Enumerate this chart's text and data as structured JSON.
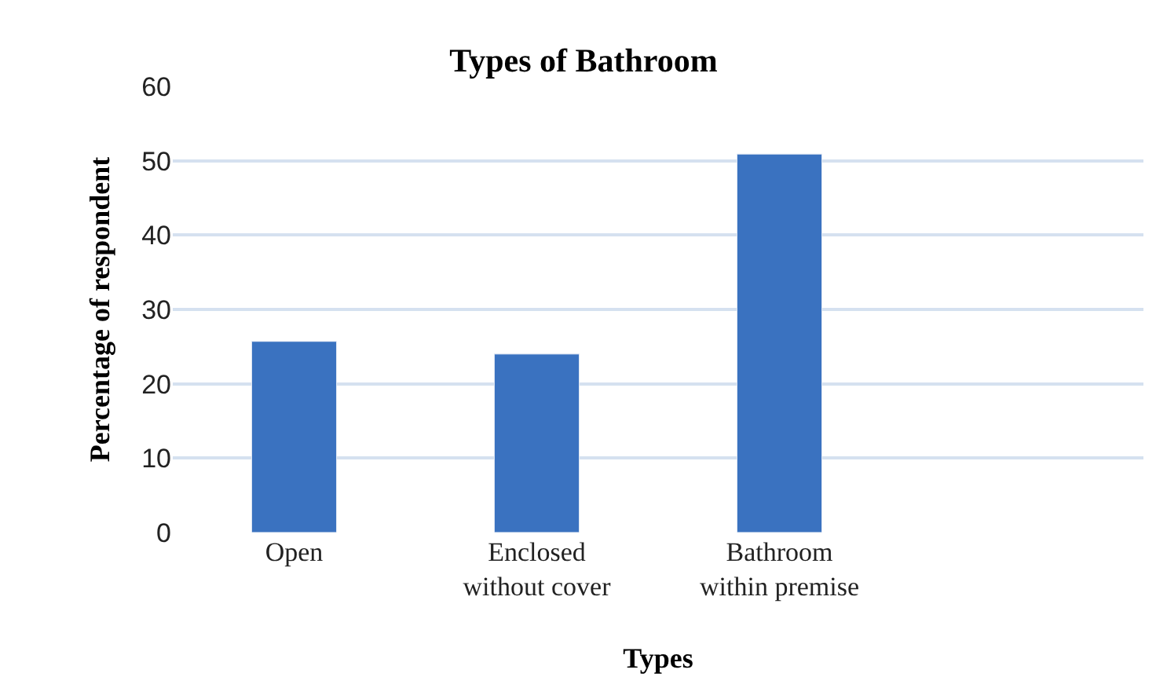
{
  "chart_data": {
    "type": "bar",
    "title": "Types of Bathroom",
    "xlabel": "Types",
    "ylabel": "Percentage of respondent",
    "categories": [
      "Open",
      "Enclosed\nwithout cover",
      "Bathroom\nwithin premise",
      null
    ],
    "values": [
      25.7,
      24.0,
      50.9,
      null
    ],
    "color": "#3a72c0",
    "ylim": [
      0,
      60
    ],
    "yticks": [
      0,
      10,
      20,
      30,
      40,
      50,
      60
    ],
    "grid": "y"
  }
}
